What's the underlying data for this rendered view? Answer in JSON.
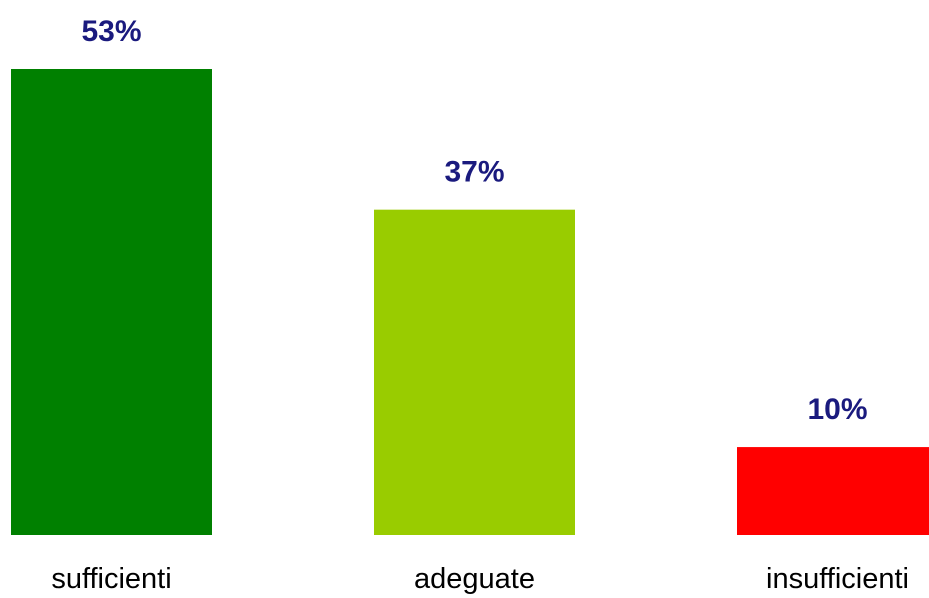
{
  "chart_data": {
    "type": "bar",
    "title": "",
    "xlabel": "",
    "ylabel": "",
    "categories": [
      "sufficienti",
      "adeguate",
      "insufficienti"
    ],
    "values": [
      53,
      37,
      10
    ],
    "value_labels": [
      "53%",
      "37%",
      "10%"
    ],
    "unit": "%",
    "ylim": [
      0,
      53
    ],
    "grid": false,
    "legend": "none",
    "colors": [
      "#008000",
      "#99cc00",
      "#ff0000"
    ],
    "label_color": "#1a1a7e"
  }
}
